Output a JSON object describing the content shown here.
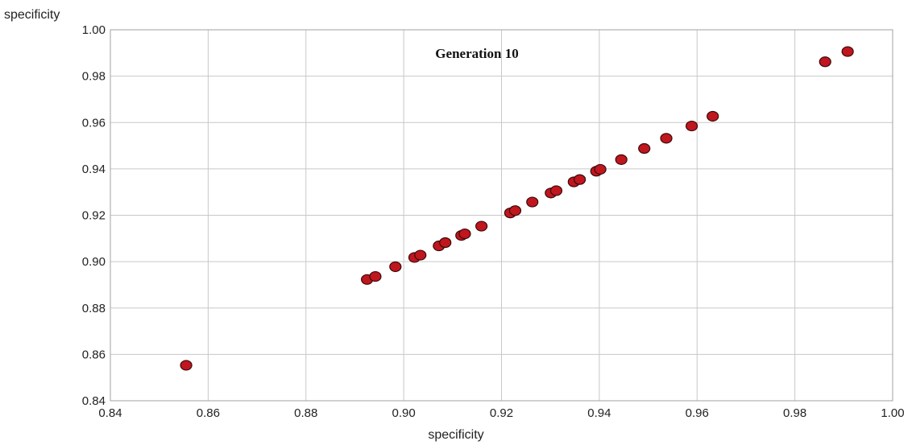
{
  "chart_data": {
    "type": "scatter",
    "title": "Generation 10",
    "xlabel": "specificity",
    "ylabel": "specificity",
    "xlim": [
      0.84,
      1.0
    ],
    "ylim": [
      0.84,
      1.0
    ],
    "x_ticks": [
      "0.84",
      "0.86",
      "0.88",
      "0.90",
      "0.92",
      "0.94",
      "0.96",
      "0.98",
      "1.00"
    ],
    "y_ticks": [
      "0.84",
      "0.86",
      "0.88",
      "0.90",
      "0.92",
      "0.94",
      "0.96",
      "0.98",
      "1.00"
    ],
    "grid": true,
    "marker_color": "#c0161e",
    "marker_edge_color": "#3a0a0a",
    "series": [
      {
        "points": [
          {
            "x": 0.8555,
            "y": 0.8553
          },
          {
            "x": 0.8925,
            "y": 0.8923
          },
          {
            "x": 0.8942,
            "y": 0.8936
          },
          {
            "x": 0.8983,
            "y": 0.8978
          },
          {
            "x": 0.9022,
            "y": 0.9018
          },
          {
            "x": 0.9034,
            "y": 0.9028
          },
          {
            "x": 0.9072,
            "y": 0.9068
          },
          {
            "x": 0.9085,
            "y": 0.9082
          },
          {
            "x": 0.9118,
            "y": 0.9113
          },
          {
            "x": 0.9125,
            "y": 0.912
          },
          {
            "x": 0.9159,
            "y": 0.9153
          },
          {
            "x": 0.9218,
            "y": 0.921
          },
          {
            "x": 0.9228,
            "y": 0.922
          },
          {
            "x": 0.9263,
            "y": 0.9257
          },
          {
            "x": 0.9301,
            "y": 0.9296
          },
          {
            "x": 0.9312,
            "y": 0.9306
          },
          {
            "x": 0.9348,
            "y": 0.9344
          },
          {
            "x": 0.936,
            "y": 0.9354
          },
          {
            "x": 0.9394,
            "y": 0.939
          },
          {
            "x": 0.9402,
            "y": 0.9398
          },
          {
            "x": 0.9445,
            "y": 0.944
          },
          {
            "x": 0.9492,
            "y": 0.9488
          },
          {
            "x": 0.9537,
            "y": 0.9532
          },
          {
            "x": 0.9589,
            "y": 0.9585
          },
          {
            "x": 0.9632,
            "y": 0.9627
          },
          {
            "x": 0.9862,
            "y": 0.9862
          },
          {
            "x": 0.9908,
            "y": 0.9906
          }
        ]
      }
    ]
  }
}
